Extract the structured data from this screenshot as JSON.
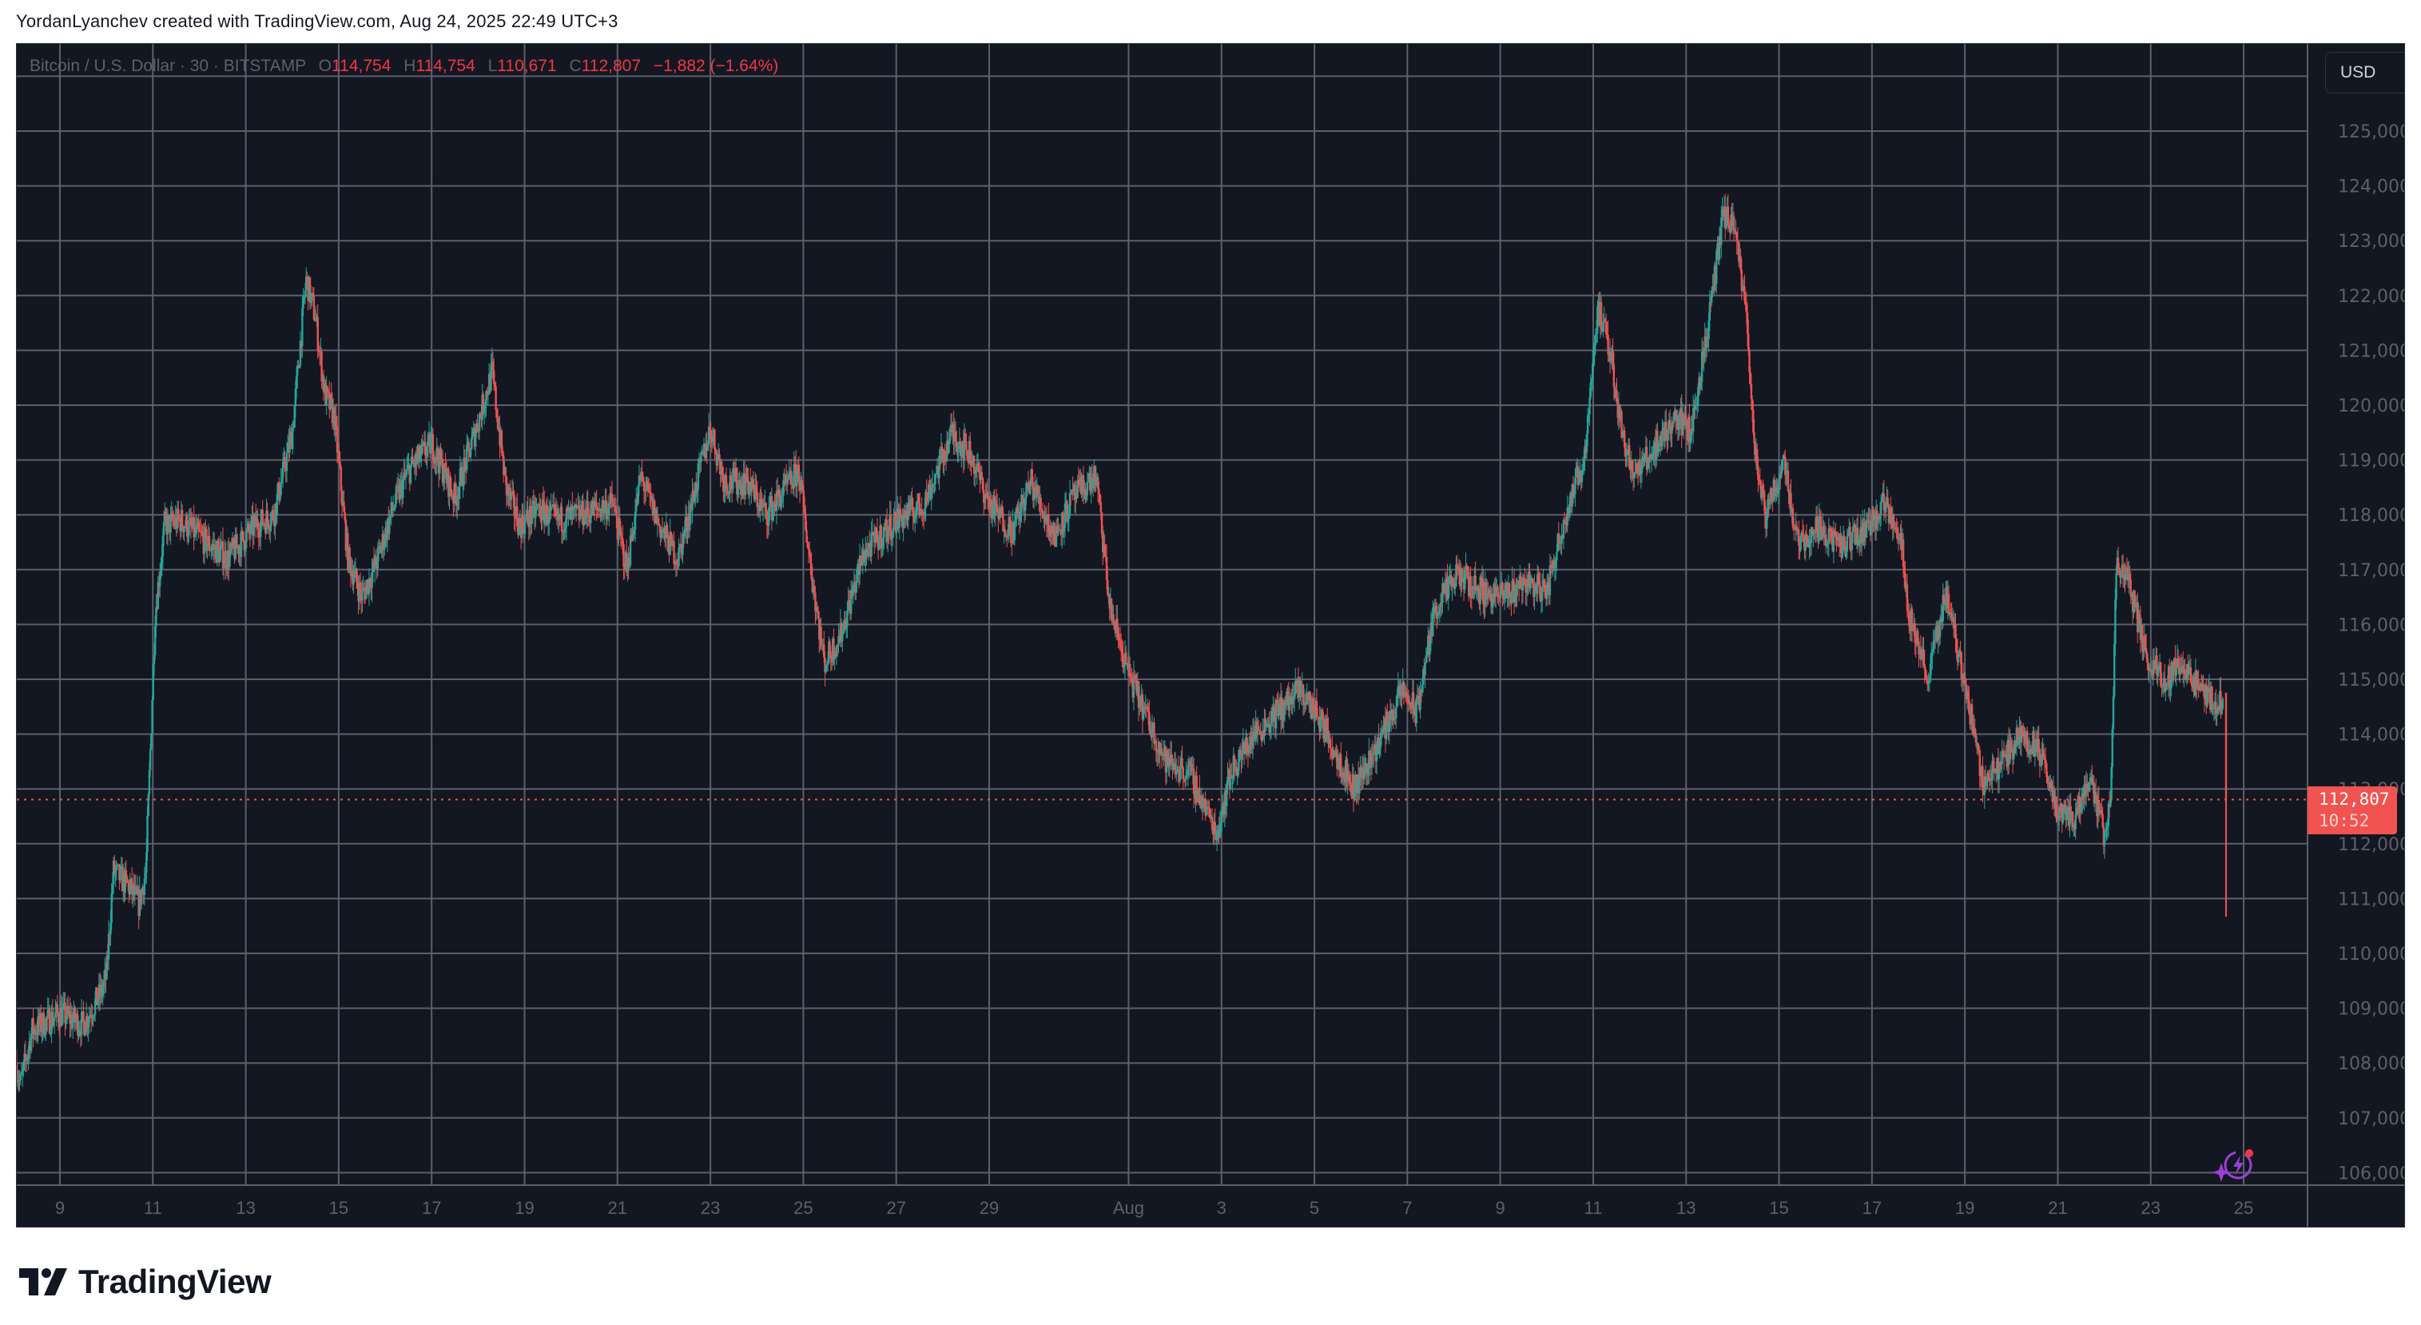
{
  "header": {
    "caption": "YordanLyanchev created with TradingView.com, Aug 24, 2025 22:49 UTC+3"
  },
  "legend": {
    "symbol": "Bitcoin / U.S. Dollar · 30 · BITSTAMP",
    "open_label": "O",
    "open": "114,754",
    "high_label": "H",
    "high": "114,754",
    "low_label": "L",
    "low": "110,671",
    "close_label": "C",
    "close": "112,807",
    "change": "−1,882 (−1.64%)"
  },
  "price_axis": {
    "currency_button": "USD",
    "labels": [
      "125,000",
      "124,000",
      "123,000",
      "122,000",
      "121,000",
      "120,000",
      "119,000",
      "118,000",
      "117,000",
      "116,000",
      "115,000",
      "114,000",
      "113,000",
      "112,000",
      "111,000",
      "110,000",
      "109,000",
      "108,000",
      "107,000",
      "106,000"
    ]
  },
  "last_price_tag": {
    "price": "112,807",
    "countdown": "10:52"
  },
  "time_axis": {
    "labels": [
      "9",
      "11",
      "13",
      "15",
      "17",
      "19",
      "21",
      "23",
      "25",
      "27",
      "29",
      "Aug",
      "3",
      "5",
      "7",
      "9",
      "11",
      "13",
      "15",
      "17",
      "19",
      "21",
      "23",
      "25"
    ]
  },
  "footer": {
    "brand": "TradingView"
  },
  "colors": {
    "background": "#131722",
    "grid": "#5d606b",
    "up": "#26a69a",
    "down": "#ef5350",
    "last_price": "#f05350",
    "axis_text": "#5d606b",
    "ai_icon": "#9c3fd6"
  },
  "chart_data": {
    "type": "candlestick",
    "title": "Bitcoin / U.S. Dollar · 30 · BITSTAMP",
    "interval": "30m",
    "xlabel": "",
    "ylabel": "USD",
    "ylim": [
      105600,
      126500
    ],
    "grid": true,
    "legend_position": "top-left",
    "last_price": 112807,
    "ohlc_last_bar": {
      "open": 114754,
      "high": 114754,
      "low": 110671,
      "close": 112807,
      "change": -1882,
      "change_pct": -1.64
    },
    "x_ticks": [
      "Jul 9",
      "Jul 11",
      "Jul 13",
      "Jul 15",
      "Jul 17",
      "Jul 19",
      "Jul 21",
      "Jul 23",
      "Jul 25",
      "Jul 27",
      "Jul 29",
      "Aug 1",
      "Aug 3",
      "Aug 5",
      "Aug 7",
      "Aug 9",
      "Aug 11",
      "Aug 13",
      "Aug 15",
      "Aug 17",
      "Aug 19",
      "Aug 21",
      "Aug 23",
      "Aug 25"
    ],
    "y_ticks": [
      106000,
      107000,
      108000,
      109000,
      110000,
      111000,
      112000,
      113000,
      114000,
      115000,
      116000,
      117000,
      118000,
      119000,
      120000,
      121000,
      122000,
      123000,
      124000,
      125000
    ],
    "price_path_note": "approximate closes; day = days since Jul 9 00:00",
    "price_path": [
      [
        -0.95,
        108000
      ],
      [
        -0.85,
        107600
      ],
      [
        -0.6,
        108600
      ],
      [
        0,
        108900
      ],
      [
        0.5,
        108700
      ],
      [
        0.9,
        109300
      ],
      [
        1.0,
        109600
      ],
      [
        1.15,
        111500
      ],
      [
        1.5,
        111200
      ],
      [
        1.7,
        110900
      ],
      [
        1.85,
        111500
      ],
      [
        1.95,
        113800
      ],
      [
        2.05,
        116200
      ],
      [
        2.25,
        117800
      ],
      [
        2.6,
        117900
      ],
      [
        3.0,
        117600
      ],
      [
        3.6,
        117200
      ],
      [
        4.2,
        117800
      ],
      [
        4.6,
        118000
      ],
      [
        5.0,
        119500
      ],
      [
        5.3,
        122300
      ],
      [
        5.5,
        121600
      ],
      [
        5.7,
        120200
      ],
      [
        5.9,
        119800
      ],
      [
        6.2,
        117200
      ],
      [
        6.5,
        116500
      ],
      [
        6.8,
        117100
      ],
      [
        7.2,
        118200
      ],
      [
        7.5,
        118800
      ],
      [
        8.0,
        119300
      ],
      [
        8.5,
        118300
      ],
      [
        9.0,
        119700
      ],
      [
        9.3,
        120600
      ],
      [
        9.6,
        118500
      ],
      [
        9.9,
        117800
      ],
      [
        10.3,
        118100
      ],
      [
        10.7,
        117900
      ],
      [
        11.2,
        118000
      ],
      [
        11.9,
        118200
      ],
      [
        12.2,
        117000
      ],
      [
        12.5,
        118700
      ],
      [
        12.9,
        117800
      ],
      [
        13.3,
        117200
      ],
      [
        14.0,
        119600
      ],
      [
        14.3,
        118600
      ],
      [
        14.8,
        118600
      ],
      [
        15.2,
        118000
      ],
      [
        15.9,
        118800
      ],
      [
        16.2,
        116800
      ],
      [
        16.45,
        115300
      ],
      [
        16.8,
        115800
      ],
      [
        17.3,
        117300
      ],
      [
        18.0,
        117900
      ],
      [
        18.6,
        118200
      ],
      [
        19.2,
        119500
      ],
      [
        19.6,
        119100
      ],
      [
        20.0,
        118200
      ],
      [
        20.5,
        117700
      ],
      [
        20.9,
        118600
      ],
      [
        21.4,
        117600
      ],
      [
        21.8,
        118300
      ],
      [
        22.3,
        118700
      ],
      [
        22.6,
        116300
      ],
      [
        23.0,
        115100
      ],
      [
        23.4,
        114300
      ],
      [
        23.8,
        113500
      ],
      [
        24.3,
        113300
      ],
      [
        24.9,
        112200
      ],
      [
        25.2,
        113300
      ],
      [
        25.7,
        114000
      ],
      [
        26.2,
        114400
      ],
      [
        26.7,
        114800
      ],
      [
        27.1,
        114300
      ],
      [
        27.5,
        113600
      ],
      [
        27.85,
        113000
      ],
      [
        28.3,
        113700
      ],
      [
        28.9,
        114800
      ],
      [
        29.2,
        114400
      ],
      [
        29.6,
        116300
      ],
      [
        30.1,
        116900
      ],
      [
        30.6,
        116600
      ],
      [
        31.1,
        116500
      ],
      [
        31.5,
        116800
      ],
      [
        32.0,
        116600
      ],
      [
        32.4,
        118000
      ],
      [
        32.8,
        119000
      ],
      [
        33.1,
        121800
      ],
      [
        33.4,
        120800
      ],
      [
        33.6,
        119600
      ],
      [
        33.9,
        118700
      ],
      [
        34.3,
        119200
      ],
      [
        34.8,
        119800
      ],
      [
        35.1,
        119500
      ],
      [
        35.5,
        121600
      ],
      [
        35.8,
        123500
      ],
      [
        36.05,
        123200
      ],
      [
        36.3,
        121600
      ],
      [
        36.5,
        119000
      ],
      [
        36.7,
        117900
      ],
      [
        37.1,
        119000
      ],
      [
        37.4,
        117500
      ],
      [
        37.9,
        117800
      ],
      [
        38.3,
        117400
      ],
      [
        38.8,
        117700
      ],
      [
        39.3,
        118200
      ],
      [
        39.6,
        117700
      ],
      [
        39.8,
        116200
      ],
      [
        40.2,
        115000
      ],
      [
        40.6,
        116600
      ],
      [
        41.0,
        114900
      ],
      [
        41.4,
        113100
      ],
      [
        41.8,
        113500
      ],
      [
        42.2,
        114000
      ],
      [
        42.6,
        113700
      ],
      [
        43.0,
        112600
      ],
      [
        43.4,
        112500
      ],
      [
        43.7,
        113300
      ],
      [
        44.0,
        112100
      ],
      [
        44.15,
        113000
      ],
      [
        44.25,
        117000
      ],
      [
        44.5,
        116900
      ],
      [
        44.9,
        115400
      ],
      [
        45.3,
        115000
      ],
      [
        45.7,
        115300
      ],
      [
        46.1,
        114700
      ],
      [
        46.55,
        114500
      ],
      [
        46.6,
        112807
      ]
    ]
  }
}
